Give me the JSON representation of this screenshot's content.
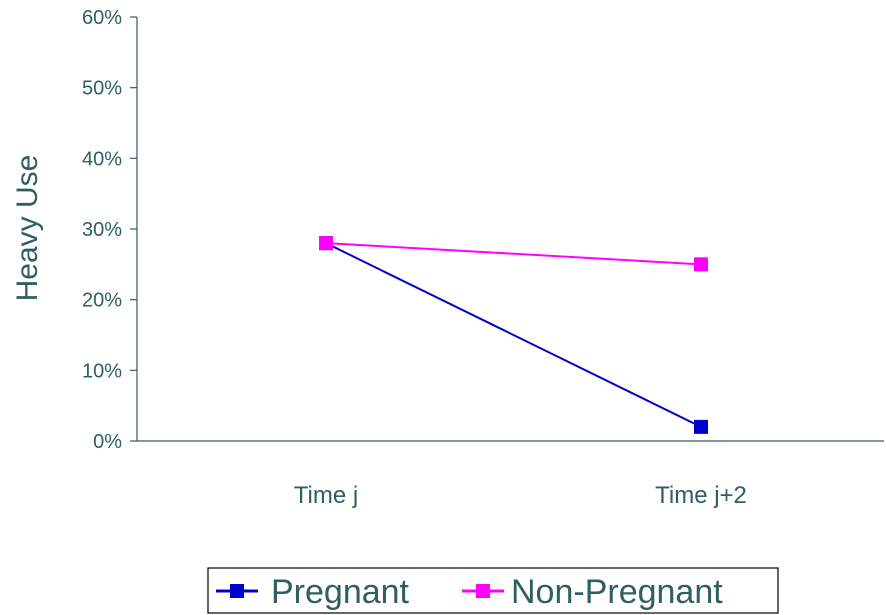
{
  "chart_data": {
    "type": "line",
    "categories": [
      "Time j",
      "Time j+2"
    ],
    "series": [
      {
        "name": "Pregnant",
        "values": [
          0.28,
          0.02
        ],
        "color": "#0000cc"
      },
      {
        "name": "Non-Pregnant",
        "values": [
          0.28,
          0.25
        ],
        "color": "#ff00ff"
      }
    ],
    "ylabel": "Heavy Use",
    "ylim": [
      0,
      0.6
    ],
    "yticks": [
      0,
      0.1,
      0.2,
      0.3,
      0.4,
      0.5,
      0.6
    ],
    "ytick_labels": [
      "0%",
      "10%",
      "20%",
      "30%",
      "40%",
      "50%",
      "60%"
    ],
    "grid": false,
    "legend_position": "bottom",
    "marker": "square"
  }
}
